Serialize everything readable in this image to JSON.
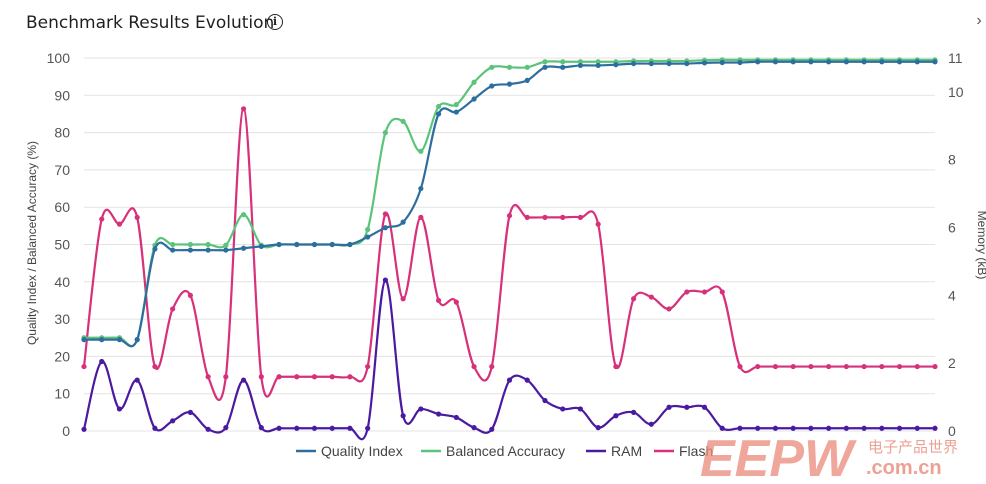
{
  "header": {
    "title": "Benchmark Results Evolution",
    "info_icon": "info-icon",
    "chevron_icon": "chevron-right-icon"
  },
  "watermark": {
    "logo_text": "EEPW",
    "domain_text": ".com.cn",
    "cn_text": "电子产品世界"
  },
  "chart_data": {
    "type": "line",
    "title": "Benchmark Results Evolution",
    "ylabel": "Quality Index / Balanced Accuracy (%)",
    "y2label": "Memory (kB)",
    "ylim": [
      0,
      100
    ],
    "y2lim": [
      0,
      11
    ],
    "yticks": [
      0,
      10,
      20,
      30,
      40,
      50,
      60,
      70,
      80,
      90,
      100
    ],
    "y2ticks": [
      0,
      2,
      4,
      6,
      8,
      10,
      11
    ],
    "grid": true,
    "legend_position": "bottom",
    "x": [
      0,
      1,
      2,
      3,
      4,
      5,
      6,
      7,
      8,
      9,
      10,
      11,
      12,
      13,
      14,
      15,
      16,
      17,
      18,
      19,
      20,
      21,
      22,
      23,
      24,
      25,
      26,
      27,
      28,
      29,
      30,
      31,
      32,
      33,
      34,
      35,
      36,
      37,
      38,
      39,
      40,
      41,
      42,
      43,
      44,
      45,
      46,
      47,
      48
    ],
    "series": [
      {
        "name": "Quality Index",
        "axis": "left",
        "color": "#2e6e9e",
        "values": [
          24.5,
          24.5,
          24.5,
          24.5,
          48.8,
          48.5,
          48.5,
          48.5,
          48.5,
          49,
          49.5,
          50,
          50,
          50,
          50,
          50,
          52,
          54.5,
          56,
          65,
          85,
          85.5,
          89,
          92.5,
          93,
          94,
          97.5,
          97.5,
          98,
          98,
          98.2,
          98.5,
          98.5,
          98.5,
          98.5,
          98.7,
          98.8,
          98.8,
          99,
          99,
          99,
          99,
          99,
          99,
          99,
          99,
          99,
          99,
          99
        ]
      },
      {
        "name": "Balanced Accuracy",
        "axis": "left",
        "color": "#5cc47a",
        "values": [
          25,
          25,
          25,
          24.5,
          49.8,
          50,
          50,
          50,
          49.8,
          58,
          49.8,
          50,
          50,
          50,
          50,
          50,
          54,
          80,
          83,
          75,
          87,
          87.5,
          93.5,
          97.5,
          97.5,
          97.5,
          99,
          99,
          99,
          99,
          99,
          99.2,
          99.2,
          99.2,
          99.2,
          99.4,
          99.5,
          99.5,
          99.5,
          99.5,
          99.5,
          99.5,
          99.5,
          99.5,
          99.5,
          99.5,
          99.5,
          99.5,
          99.5
        ]
      },
      {
        "name": "RAM",
        "axis": "right",
        "color": "#4a1aa0",
        "values": [
          0.05,
          2.05,
          0.65,
          1.5,
          0.08,
          0.3,
          0.55,
          0.05,
          0.1,
          1.5,
          0.1,
          0.08,
          0.08,
          0.08,
          0.08,
          0.08,
          0.08,
          4.45,
          0.45,
          0.65,
          0.5,
          0.4,
          0.1,
          0.05,
          1.5,
          1.5,
          0.9,
          0.65,
          0.65,
          0.1,
          0.45,
          0.55,
          0.2,
          0.7,
          0.7,
          0.7,
          0.08,
          0.08,
          0.08,
          0.08,
          0.08,
          0.08,
          0.08,
          0.08,
          0.08,
          0.08,
          0.08,
          0.08,
          0.08
        ]
      },
      {
        "name": "Flash",
        "axis": "right",
        "color": "#d6317a",
        "values": [
          1.9,
          6.25,
          6.1,
          6.3,
          1.9,
          3.6,
          4.0,
          1.6,
          1.6,
          9.5,
          1.6,
          1.6,
          1.6,
          1.6,
          1.6,
          1.6,
          1.9,
          6.4,
          3.9,
          6.3,
          3.85,
          3.8,
          1.9,
          1.9,
          6.35,
          6.3,
          6.3,
          6.3,
          6.3,
          6.1,
          1.9,
          3.9,
          3.95,
          3.6,
          4.1,
          4.1,
          4.1,
          1.9,
          1.9,
          1.9,
          1.9,
          1.9,
          1.9,
          1.9,
          1.9,
          1.9,
          1.9,
          1.9,
          1.9
        ]
      }
    ]
  }
}
